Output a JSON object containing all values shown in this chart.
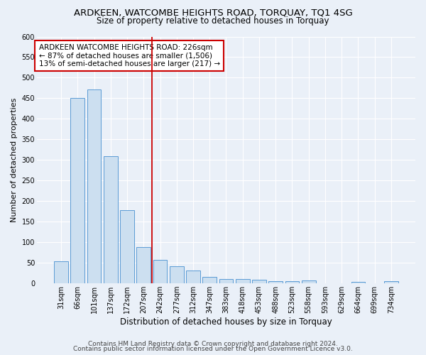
{
  "title": "ARDKEEN, WATCOMBE HEIGHTS ROAD, TORQUAY, TQ1 4SG",
  "subtitle": "Size of property relative to detached houses in Torquay",
  "xlabel": "Distribution of detached houses by size in Torquay",
  "ylabel": "Number of detached properties",
  "categories": [
    "31sqm",
    "66sqm",
    "101sqm",
    "137sqm",
    "172sqm",
    "207sqm",
    "242sqm",
    "277sqm",
    "312sqm",
    "347sqm",
    "383sqm",
    "418sqm",
    "453sqm",
    "488sqm",
    "523sqm",
    "558sqm",
    "593sqm",
    "629sqm",
    "664sqm",
    "699sqm",
    "734sqm"
  ],
  "values": [
    53,
    450,
    472,
    310,
    178,
    88,
    57,
    42,
    32,
    16,
    10,
    10,
    9,
    6,
    6,
    8,
    1,
    0,
    4,
    0,
    5
  ],
  "bar_color": "#ccdff0",
  "bar_edge_color": "#5b9bd5",
  "red_line_x": 5.5,
  "annotation_text": "ARDKEEN WATCOMBE HEIGHTS ROAD: 226sqm\n← 87% of detached houses are smaller (1,506)\n13% of semi-detached houses are larger (217) →",
  "annotation_box_color": "#ffffff",
  "annotation_box_edge": "#cc0000",
  "ylim": [
    0,
    600
  ],
  "yticks": [
    0,
    50,
    100,
    150,
    200,
    250,
    300,
    350,
    400,
    450,
    500,
    550,
    600
  ],
  "background_color": "#eaf0f8",
  "plot_bg_color": "#eaf0f8",
  "footer1": "Contains HM Land Registry data © Crown copyright and database right 2024.",
  "footer2": "Contains public sector information licensed under the Open Government Licence v3.0.",
  "title_fontsize": 9.5,
  "subtitle_fontsize": 8.5,
  "xlabel_fontsize": 8.5,
  "ylabel_fontsize": 8,
  "tick_fontsize": 7,
  "footer_fontsize": 6.5,
  "annotation_fontsize": 7.5
}
